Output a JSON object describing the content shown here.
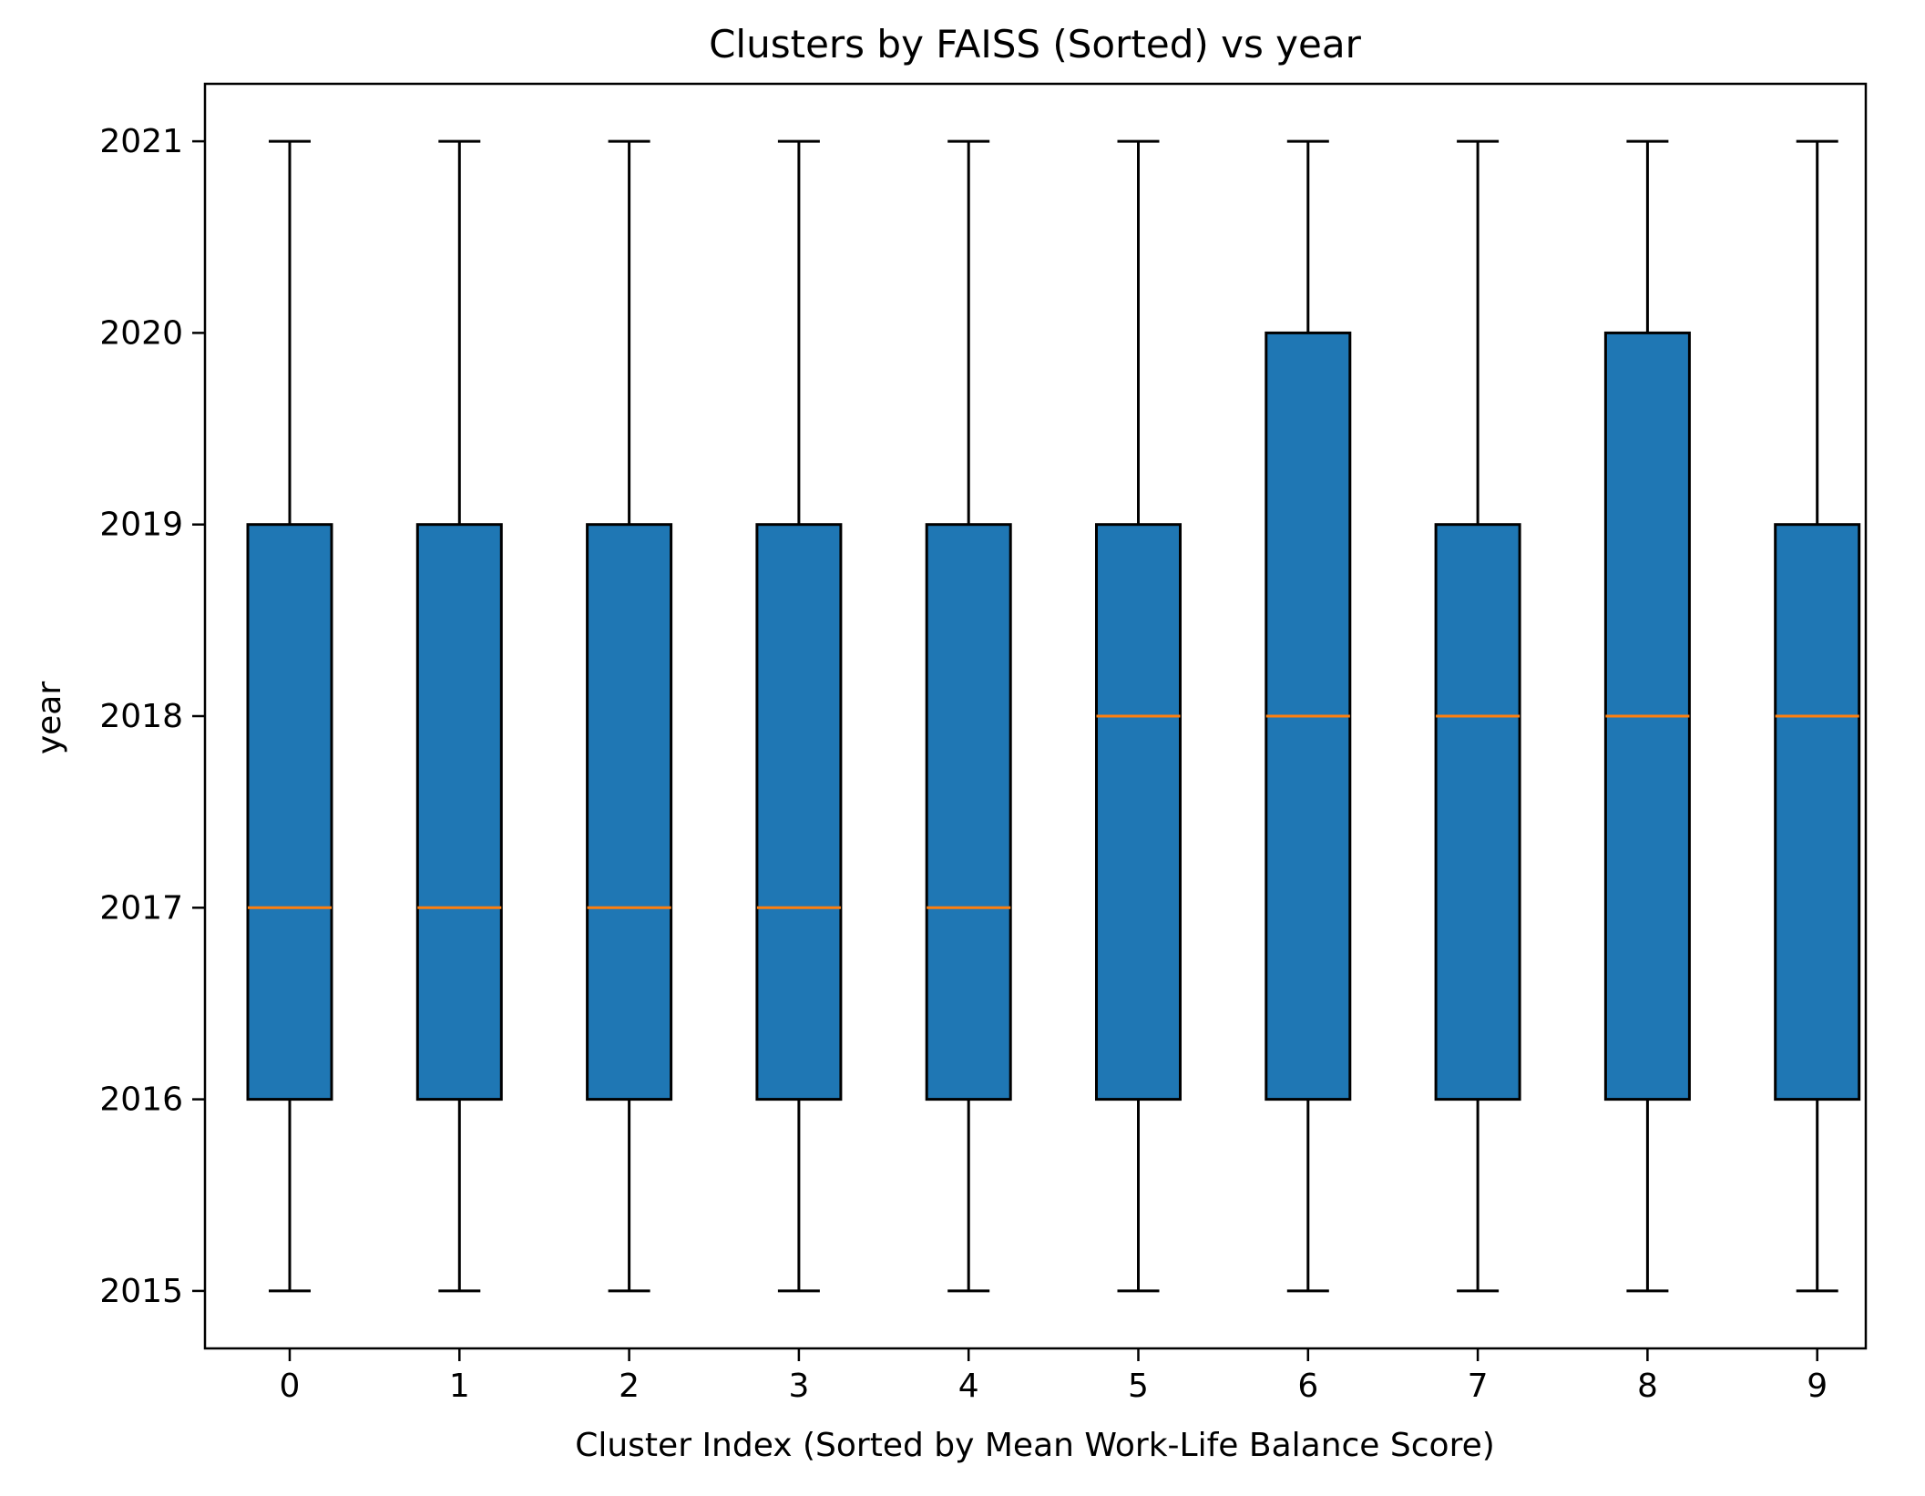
{
  "chart_data": {
    "type": "box",
    "title": "Clusters by FAISS (Sorted) vs year",
    "xlabel": "Cluster Index (Sorted by Mean Work-Life Balance Score)",
    "ylabel": "year",
    "categories": [
      "0",
      "1",
      "2",
      "3",
      "4",
      "5",
      "6",
      "7",
      "8",
      "9"
    ],
    "ylim": [
      2014.7,
      2021.3
    ],
    "yticks": [
      2015,
      2016,
      2017,
      2018,
      2019,
      2020,
      2021
    ],
    "grid": false,
    "box_color": "#1f77b4",
    "median_color": "#ff7f0e",
    "boxes": [
      {
        "label": "0",
        "min": 2015,
        "q1": 2016,
        "median": 2017,
        "q3": 2019,
        "max": 2021
      },
      {
        "label": "1",
        "min": 2015,
        "q1": 2016,
        "median": 2017,
        "q3": 2019,
        "max": 2021
      },
      {
        "label": "2",
        "min": 2015,
        "q1": 2016,
        "median": 2017,
        "q3": 2019,
        "max": 2021
      },
      {
        "label": "3",
        "min": 2015,
        "q1": 2016,
        "median": 2017,
        "q3": 2019,
        "max": 2021
      },
      {
        "label": "4",
        "min": 2015,
        "q1": 2016,
        "median": 2017,
        "q3": 2019,
        "max": 2021
      },
      {
        "label": "5",
        "min": 2015,
        "q1": 2016,
        "median": 2018,
        "q3": 2019,
        "max": 2021
      },
      {
        "label": "6",
        "min": 2015,
        "q1": 2016,
        "median": 2018,
        "q3": 2020,
        "max": 2021
      },
      {
        "label": "7",
        "min": 2015,
        "q1": 2016,
        "median": 2018,
        "q3": 2019,
        "max": 2021
      },
      {
        "label": "8",
        "min": 2015,
        "q1": 2016,
        "median": 2018,
        "q3": 2020,
        "max": 2021
      },
      {
        "label": "9",
        "min": 2015,
        "q1": 2016,
        "median": 2018,
        "q3": 2019,
        "max": 2021
      }
    ]
  }
}
